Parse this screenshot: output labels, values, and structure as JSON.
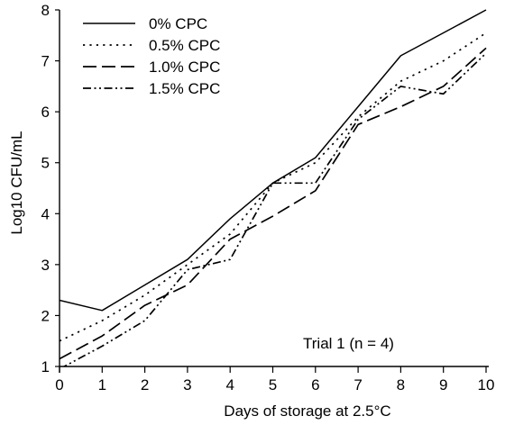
{
  "chart_data": {
    "type": "line",
    "title": "",
    "xlabel": "Days of storage at 2.5°C",
    "ylabel": "Log10 CFU/mL",
    "xlim": [
      0,
      10
    ],
    "ylim": [
      1,
      8
    ],
    "x_ticks": [
      "0",
      "1",
      "2",
      "3",
      "4",
      "5",
      "6",
      "7",
      "8",
      "9",
      "10"
    ],
    "y_ticks": [
      "1",
      "2",
      "3",
      "4",
      "5",
      "6",
      "7",
      "8"
    ],
    "grid": false,
    "legend_position": "top-left",
    "annotation": "Trial 1 (n = 4)",
    "series": [
      {
        "name": "0% CPC",
        "line_style": "solid",
        "color": "#000000",
        "x": [
          0,
          1,
          2,
          3,
          4,
          5,
          6,
          7,
          8,
          9,
          10
        ],
        "values": [
          2.3,
          2.1,
          2.6,
          3.1,
          3.9,
          4.6,
          5.1,
          6.1,
          7.1,
          7.55,
          8.0
        ]
      },
      {
        "name": "0.5% CPC",
        "line_style": "dotted",
        "color": "#000000",
        "x": [
          0,
          1,
          2,
          3,
          4,
          5,
          6,
          7,
          8,
          9,
          10
        ],
        "values": [
          1.5,
          1.9,
          2.4,
          3.0,
          3.6,
          4.6,
          5.0,
          5.9,
          6.6,
          7.0,
          7.55
        ]
      },
      {
        "name": "1.0% CPC",
        "line_style": "long-dash",
        "color": "#000000",
        "x": [
          0,
          1,
          2,
          3,
          4,
          5,
          6,
          7,
          8,
          9,
          10
        ],
        "values": [
          1.15,
          1.6,
          2.2,
          2.6,
          3.5,
          3.95,
          4.45,
          5.75,
          6.1,
          6.5,
          7.25
        ]
      },
      {
        "name": "1.5% CPC",
        "line_style": "dash-dot-dot",
        "color": "#000000",
        "x": [
          0,
          1,
          2,
          3,
          4,
          5,
          6,
          7,
          8,
          9,
          10
        ],
        "values": [
          0.95,
          1.4,
          1.9,
          2.9,
          3.1,
          4.6,
          4.6,
          5.85,
          6.5,
          6.35,
          7.15
        ]
      }
    ]
  }
}
